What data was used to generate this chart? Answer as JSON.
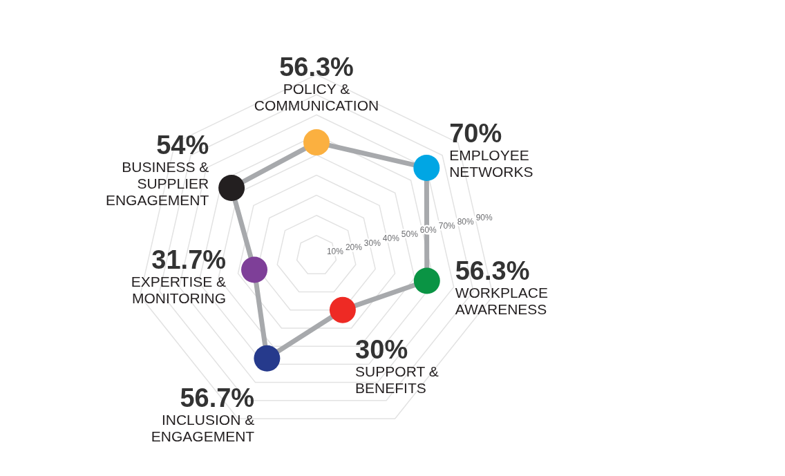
{
  "chart_data": {
    "type": "radar",
    "categories": [
      "POLICY & COMMUNICATION",
      "EMPLOYEE NETWORKS",
      "WORKPLACE AWARENESS",
      "SUPPORT & BENEFITS",
      "INCLUSION & ENGAGEMENT",
      "EXPERTISE & MONITORING",
      "BUSINESS & SUPPLIER ENGAGEMENT"
    ],
    "series": [
      {
        "color": "#a7a9ac",
        "colors": [
          "#fbb040",
          "#00a6e4",
          "#0a9444",
          "#ee2a24",
          "#263a8c",
          "#7e3f98",
          "#231f20"
        ],
        "values": [
          56.3,
          70,
          56.3,
          30,
          56.7,
          31.7,
          54
        ],
        "value_labels": [
          "56.3%",
          "70%",
          "56.3%",
          "30%",
          "56.7%",
          "31.7%",
          "54%"
        ]
      }
    ],
    "ylim": [
      0,
      90
    ],
    "yticks": [
      {
        "value": 10,
        "label": "10%"
      },
      {
        "value": 20,
        "label": "20%"
      },
      {
        "value": 30,
        "label": "30%"
      },
      {
        "value": 40,
        "label": "40%"
      },
      {
        "value": 50,
        "label": "50%"
      },
      {
        "value": 60,
        "label": "60%"
      },
      {
        "value": 70,
        "label": "70%"
      },
      {
        "value": 80,
        "label": "80%"
      },
      {
        "value": 90,
        "label": "90%"
      }
    ],
    "grid": true,
    "marker": "circle"
  }
}
